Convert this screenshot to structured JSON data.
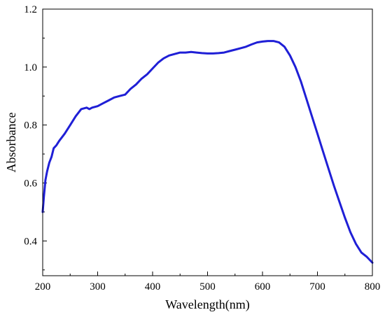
{
  "chart_data": {
    "type": "line",
    "title": "",
    "xlabel": "Wavelength(nm)",
    "ylabel": "Absorbance",
    "xlim": [
      200,
      800
    ],
    "ylim": [
      0.28,
      1.2
    ],
    "xticks": [
      200,
      300,
      400,
      500,
      600,
      700,
      800
    ],
    "yticks": [
      0.4,
      0.6,
      0.8,
      1.0,
      1.2
    ],
    "xtick_labels": [
      "200",
      "300",
      "400",
      "500",
      "600",
      "700",
      "800"
    ],
    "ytick_labels": [
      "0.4",
      "0.6",
      "0.8",
      "1.0",
      "1.2"
    ],
    "grid": false,
    "line_color": "#1f1fd6",
    "series": [
      {
        "x": [
          200,
          202,
          205,
          208,
          212,
          216,
          220,
          225,
          230,
          240,
          250,
          260,
          270,
          280,
          285,
          290,
          300,
          310,
          320,
          330,
          340,
          350,
          360,
          370,
          380,
          390,
          400,
          410,
          420,
          430,
          440,
          450,
          460,
          470,
          480,
          490,
          500,
          510,
          520,
          530,
          540,
          550,
          560,
          570,
          580,
          590,
          600,
          610,
          620,
          630,
          640,
          650,
          660,
          670,
          680,
          690,
          700,
          710,
          720,
          730,
          740,
          750,
          760,
          770,
          780,
          790,
          800
        ],
        "y": [
          0.5,
          0.55,
          0.61,
          0.64,
          0.67,
          0.69,
          0.72,
          0.73,
          0.745,
          0.77,
          0.8,
          0.83,
          0.855,
          0.86,
          0.855,
          0.86,
          0.865,
          0.875,
          0.885,
          0.895,
          0.9,
          0.905,
          0.925,
          0.94,
          0.96,
          0.975,
          0.995,
          1.015,
          1.03,
          1.04,
          1.045,
          1.05,
          1.05,
          1.052,
          1.05,
          1.048,
          1.047,
          1.047,
          1.048,
          1.05,
          1.055,
          1.06,
          1.065,
          1.07,
          1.078,
          1.085,
          1.088,
          1.09,
          1.09,
          1.085,
          1.07,
          1.04,
          1.0,
          0.95,
          0.89,
          0.83,
          0.77,
          0.71,
          0.65,
          0.59,
          0.535,
          0.48,
          0.43,
          0.39,
          0.36,
          0.345,
          0.325
        ]
      }
    ]
  }
}
